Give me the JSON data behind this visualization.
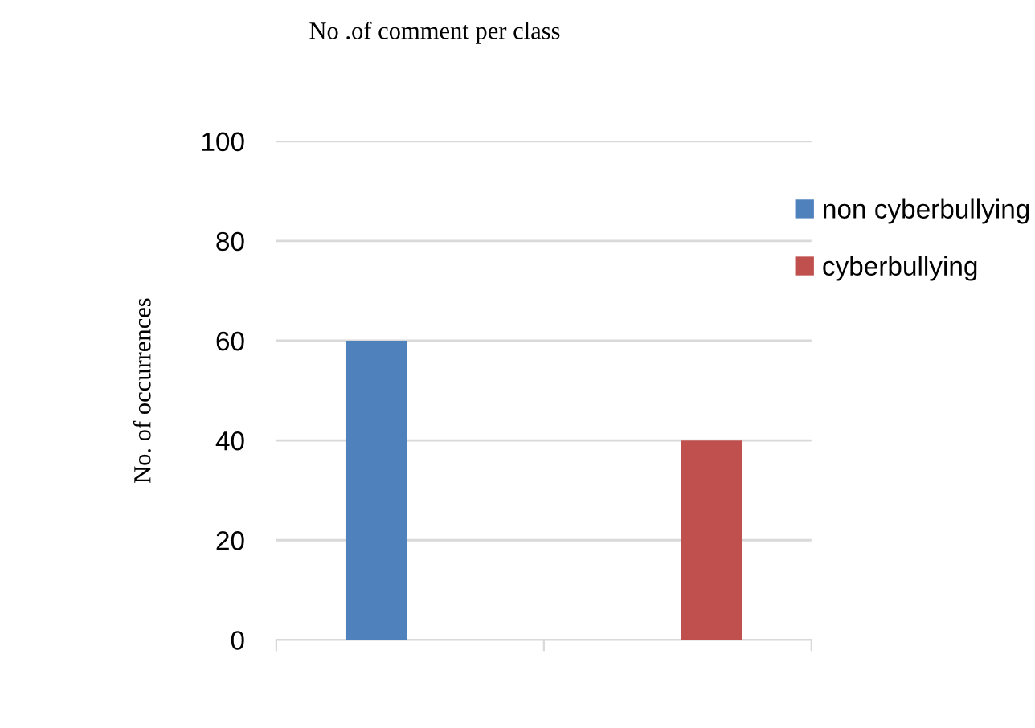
{
  "chart_data": {
    "type": "bar",
    "title": "No .of comment per class",
    "ylabel": "No. of occurrences",
    "categories": [
      null,
      null
    ],
    "series": [
      {
        "name": "non cyberbullying",
        "color": "#4f81bd",
        "values": [
          60,
          null
        ]
      },
      {
        "name": "cyberbullying",
        "color": "#c0504d",
        "values": [
          null,
          40
        ]
      }
    ],
    "ylim": [
      0,
      100
    ],
    "yticks": [
      0,
      20,
      40,
      60,
      80,
      100
    ],
    "grid": "y",
    "legend": "right"
  }
}
